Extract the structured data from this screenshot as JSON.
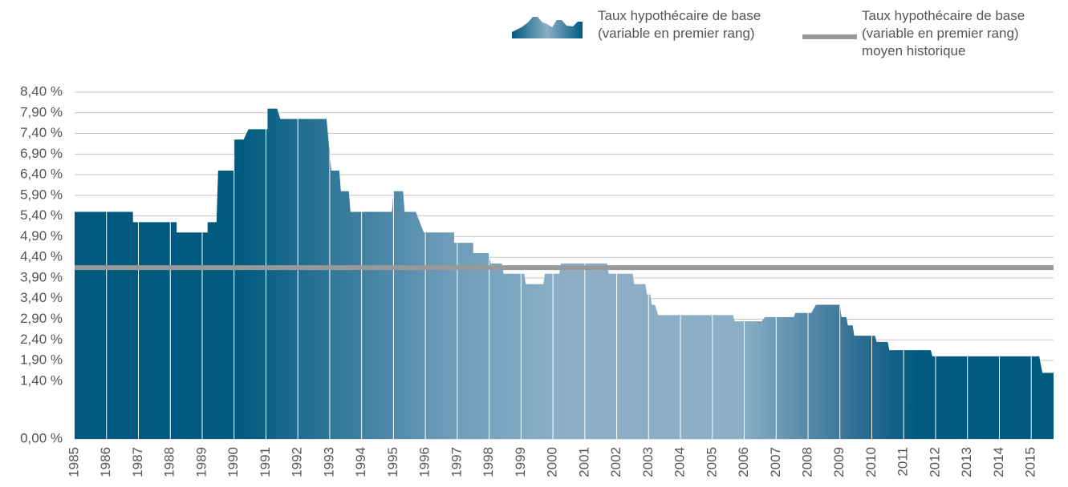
{
  "chart_data": {
    "type": "area",
    "series": [
      {
        "name": "Taux hypothécaire de base (variable en premier rang)",
        "color": "#005a7f",
        "x": [
          1985,
          1986.83,
          1986.83,
          1988.2,
          1988.2,
          1989.17,
          1989.17,
          1989.45,
          1989.5,
          1990.0,
          1990.0,
          1990.3,
          1990.45,
          1991.05,
          1991.05,
          1991.35,
          1991.45,
          1992.9,
          1993.05,
          1993.3,
          1993.35,
          1993.6,
          1993.65,
          1994.95,
          1995.0,
          1995.3,
          1995.35,
          1995.7,
          1995.95,
          1996.9,
          1996.9,
          1997.5,
          1997.5,
          1997.98,
          1998.05,
          1998.4,
          1998.45,
          1999.1,
          1999.15,
          1999.7,
          1999.75,
          2000.2,
          2000.25,
          2001.7,
          2001.75,
          2002.5,
          2002.55,
          2002.9,
          2002.95,
          2003.05,
          2003.1,
          2003.2,
          2003.3,
          2005.65,
          2005.7,
          2006.55,
          2006.65,
          2007.55,
          2007.6,
          2008.1,
          2008.25,
          2009.0,
          2009.05,
          2009.2,
          2009.25,
          2009.4,
          2009.45,
          2010.1,
          2010.15,
          2010.5,
          2010.55,
          2011.85,
          2011.9,
          2015.25,
          2015.35,
          2015.7
        ],
        "values": [
          5.5,
          5.5,
          5.25,
          5.25,
          5.0,
          5.0,
          5.25,
          5.25,
          6.5,
          6.5,
          7.25,
          7.25,
          7.5,
          7.5,
          8.0,
          8.0,
          7.75,
          7.75,
          6.5,
          6.5,
          6.0,
          6.0,
          5.5,
          5.5,
          6.0,
          6.0,
          5.5,
          5.5,
          5.0,
          5.0,
          4.75,
          4.75,
          4.5,
          4.5,
          4.25,
          4.25,
          4.0,
          4.0,
          3.75,
          3.75,
          4.0,
          4.0,
          4.25,
          4.25,
          4.0,
          4.0,
          3.75,
          3.75,
          3.5,
          3.5,
          3.25,
          3.25,
          3.0,
          3.0,
          2.85,
          2.85,
          2.95,
          2.95,
          3.05,
          3.05,
          3.25,
          3.25,
          2.95,
          2.95,
          2.75,
          2.75,
          2.5,
          2.5,
          2.35,
          2.35,
          2.15,
          2.15,
          2.0,
          2.0,
          1.6,
          1.6
        ]
      }
    ],
    "reference_line": {
      "name": "Taux hypothécaire de base (variable en premier rang) moyen historique",
      "value": 4.15,
      "color": "#999999"
    },
    "xlim": [
      1985,
      2015.7
    ],
    "xticks": [
      1985,
      1986,
      1987,
      1988,
      1989,
      1990,
      1991,
      1992,
      1993,
      1994,
      1995,
      1996,
      1997,
      1998,
      1999,
      2000,
      2001,
      2002,
      2003,
      2004,
      2005,
      2006,
      2007,
      2008,
      2009,
      2010,
      2011,
      2012,
      2013,
      2014,
      2015
    ],
    "ylim": [
      0,
      8.4
    ],
    "yticks": [
      {
        "value": 0,
        "label": "0,00 %"
      },
      {
        "value": 1.4,
        "label": "1,40 %"
      },
      {
        "value": 1.9,
        "label": "1,90 %"
      },
      {
        "value": 2.4,
        "label": "2,40 %"
      },
      {
        "value": 2.9,
        "label": "2,90 %"
      },
      {
        "value": 3.4,
        "label": "3,40 %"
      },
      {
        "value": 3.9,
        "label": "3,90 %"
      },
      {
        "value": 4.4,
        "label": "4,40 %"
      },
      {
        "value": 4.9,
        "label": "4,90 %"
      },
      {
        "value": 5.4,
        "label": "5,40 %"
      },
      {
        "value": 5.9,
        "label": "5,90 %"
      },
      {
        "value": 6.4,
        "label": "6,40 %"
      },
      {
        "value": 6.9,
        "label": "6,90 %"
      },
      {
        "value": 7.4,
        "label": "7,40 %"
      },
      {
        "value": 7.9,
        "label": "7,90 %"
      },
      {
        "value": 8.4,
        "label": "8,40 %"
      }
    ],
    "grid": true
  }
}
